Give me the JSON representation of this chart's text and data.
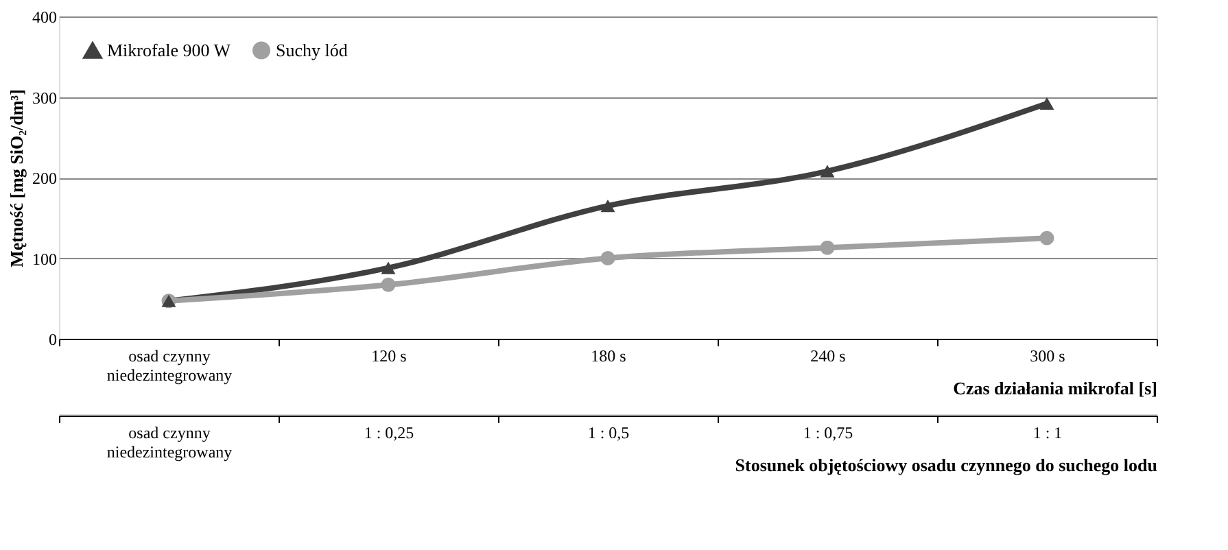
{
  "chart_data": {
    "type": "line",
    "xlabel": "Czas działania  mikrofal [s]",
    "ylabel": "Mętność [mg SiO₂/dm³]",
    "categories": [
      "osad czynny\nniedezintegrowany",
      "120 s",
      "180 s",
      "240 s",
      "300 s"
    ],
    "series": [
      {
        "name": "Mikrofale 900 W",
        "color": "#404040",
        "marker": "triangle",
        "values": [
          47,
          88,
          165,
          208,
          292
        ]
      },
      {
        "name": "Suchy lód",
        "color": "#a0a0a0",
        "marker": "circle",
        "values": [
          47,
          67,
          100,
          113,
          125
        ]
      }
    ],
    "ylim": [
      0,
      400
    ],
    "yticks": [
      0,
      100,
      200,
      300,
      400
    ],
    "grid": "y",
    "legend": "top left",
    "line_style": "solid",
    "annotations": [
      "osad czynny\nniedezintegrowany",
      "1 : 0,25",
      "1 : 0,5",
      "1 : 0,75",
      "1 : 1",
      "Stosunek objętościowy  osadu czynnego do suchego lodu"
    ]
  }
}
